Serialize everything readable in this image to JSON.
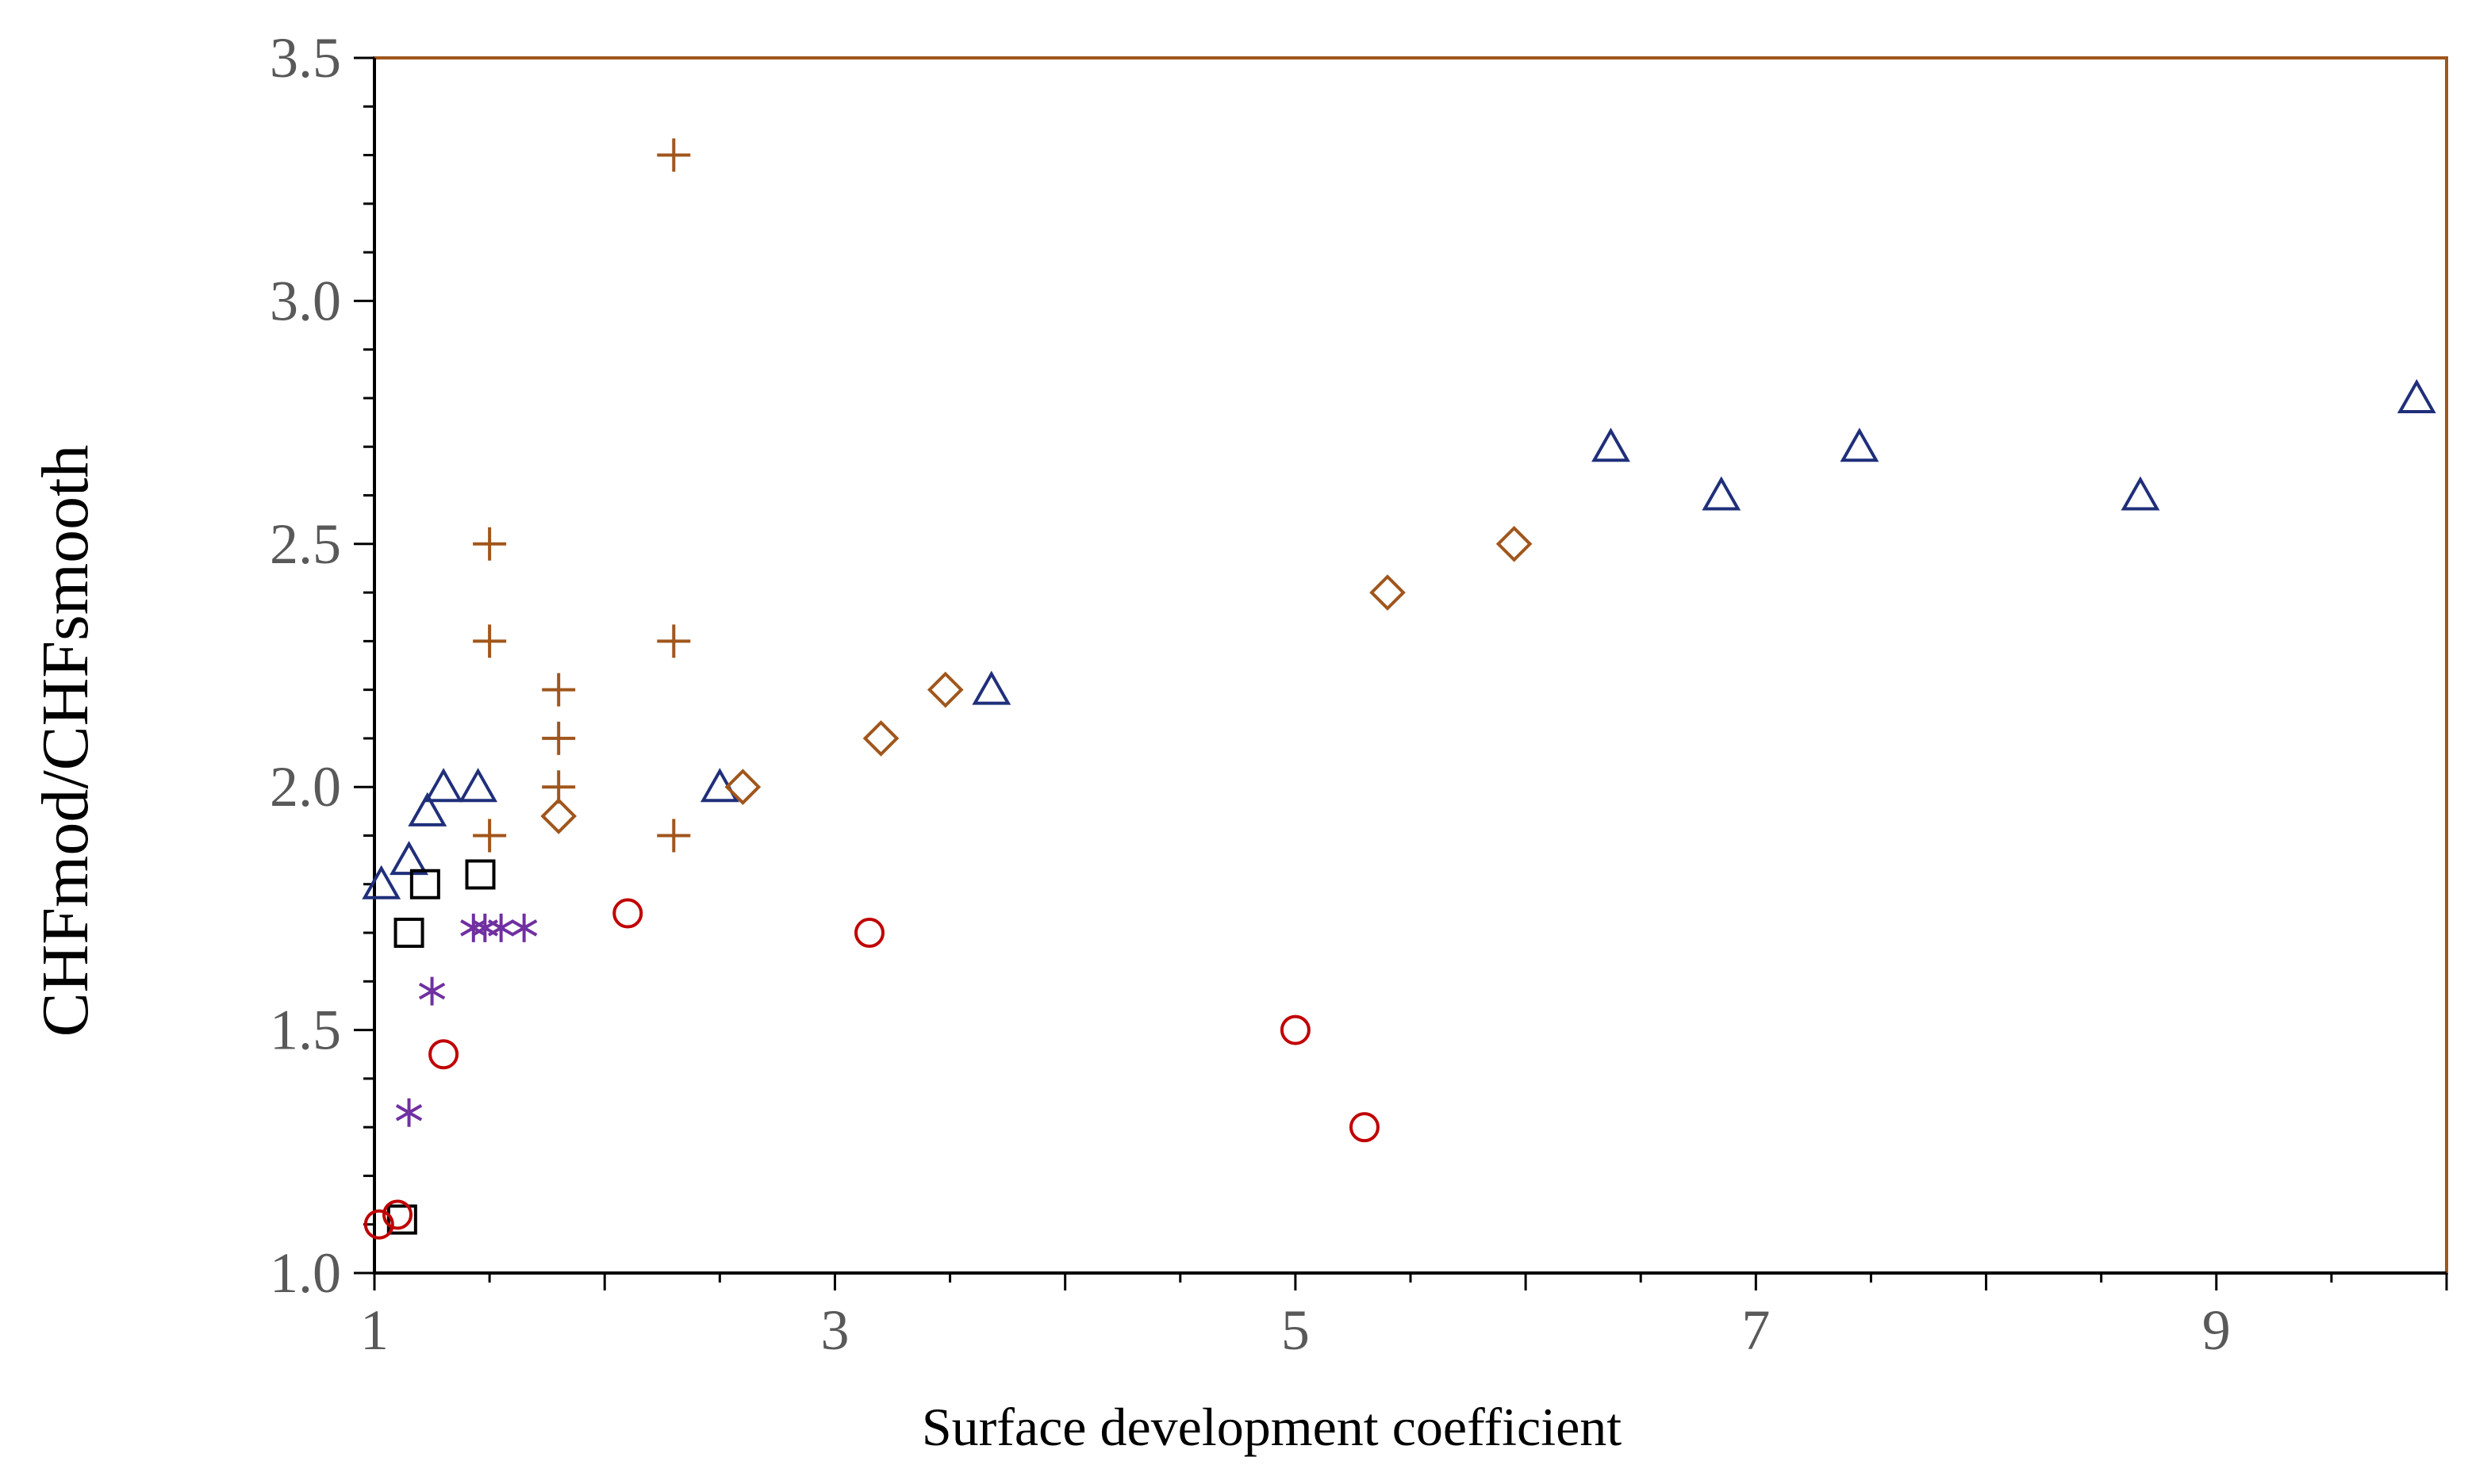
{
  "chart_data": {
    "type": "scatter",
    "title": "",
    "xlabel": "Surface development coefficient",
    "ylabel": "CHFmod/CHFsmooth",
    "xlim": [
      1,
      10
    ],
    "ylim": [
      1.0,
      3.5
    ],
    "xticks": [
      1,
      3,
      5,
      7,
      9
    ],
    "xtick_labels": [
      "1",
      "3",
      "5",
      "7",
      "9"
    ],
    "yticks": [
      1.0,
      1.5,
      2.0,
      2.5,
      3.0,
      3.5
    ],
    "ytick_labels": [
      "1.0",
      "1.5",
      "2.0",
      "2.5",
      "3.0",
      "3.5"
    ],
    "grid": false,
    "legend": "none",
    "frame_color": "#a0561c",
    "series": [
      {
        "name": "triangle",
        "marker": "triangle",
        "color": "#1f2f7a",
        "x": [
          1.03,
          1.15,
          1.23,
          1.3,
          1.45,
          2.5,
          3.68,
          6.37,
          6.85,
          7.45,
          8.67,
          9.87
        ],
        "y": [
          1.8,
          1.85,
          1.95,
          2.0,
          2.0,
          2.0,
          2.2,
          2.7,
          2.6,
          2.7,
          2.6,
          2.8
        ]
      },
      {
        "name": "plus",
        "marker": "plus",
        "color": "#a0561c",
        "x": [
          1.5,
          1.5,
          1.5,
          1.8,
          1.8,
          1.8,
          2.3,
          2.3,
          2.3
        ],
        "y": [
          2.5,
          2.3,
          1.9,
          2.2,
          2.1,
          2.0,
          3.3,
          2.3,
          1.9
        ]
      },
      {
        "name": "diamond",
        "marker": "diamond",
        "color": "#a0561c",
        "x": [
          1.8,
          2.6,
          3.2,
          3.48,
          5.4,
          5.95
        ],
        "y": [
          1.94,
          2.0,
          2.1,
          2.2,
          2.4,
          2.5
        ]
      },
      {
        "name": "square",
        "marker": "square",
        "color": "#000000",
        "x": [
          1.12,
          1.15,
          1.22,
          1.46
        ],
        "y": [
          1.11,
          1.7,
          1.8,
          1.82
        ]
      },
      {
        "name": "asterisk",
        "marker": "asterisk",
        "color": "#7030a0",
        "x": [
          1.15,
          1.25,
          1.43,
          1.48,
          1.55,
          1.65
        ],
        "y": [
          1.33,
          1.58,
          1.71,
          1.71,
          1.71,
          1.71
        ]
      },
      {
        "name": "circle",
        "marker": "circle",
        "color": "#c00000",
        "x": [
          1.02,
          1.1,
          1.3,
          2.1,
          3.15,
          5.0,
          5.3
        ],
        "y": [
          1.1,
          1.12,
          1.45,
          1.74,
          1.7,
          1.5,
          1.3
        ]
      }
    ]
  }
}
